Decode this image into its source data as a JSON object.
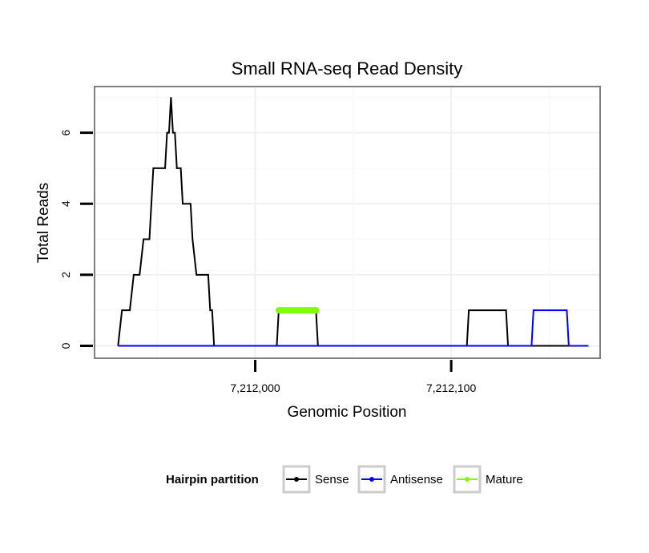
{
  "chart_data": {
    "type": "line",
    "title": "Small RNA-seq Read Density",
    "xlabel": "Genomic Position",
    "ylabel": "Total Reads",
    "xlim": [
      7211918,
      7212176
    ],
    "ylim": [
      -0.35,
      7.3
    ],
    "x_ticks": [
      7212000,
      7212100
    ],
    "x_tick_labels": [
      "7,212,000",
      "7,212,100"
    ],
    "y_ticks": [
      0,
      2,
      4,
      6
    ],
    "y_tick_labels": [
      "0",
      "2",
      "4",
      "6"
    ],
    "grid": true,
    "legend": {
      "title": "Hairpin partition",
      "position": "bottom",
      "entries": [
        {
          "label": "Sense",
          "color": "#000000"
        },
        {
          "label": "Antisense",
          "color": "#0000ff"
        },
        {
          "label": "Mature",
          "color": "#7fff00"
        }
      ]
    },
    "series": [
      {
        "name": "Sense",
        "color": "#000000",
        "points": [
          [
            7211930,
            0
          ],
          [
            7211932,
            1
          ],
          [
            7211936,
            1
          ],
          [
            7211938,
            2
          ],
          [
            7211941,
            2
          ],
          [
            7211943,
            3
          ],
          [
            7211946,
            3
          ],
          [
            7211948,
            5
          ],
          [
            7211954,
            5
          ],
          [
            7211955,
            6
          ],
          [
            7211956,
            6
          ],
          [
            7211957,
            7
          ],
          [
            7211958,
            6
          ],
          [
            7211959,
            6
          ],
          [
            7211960,
            5
          ],
          [
            7211962,
            5
          ],
          [
            7211963,
            4
          ],
          [
            7211967,
            4
          ],
          [
            7211968,
            3
          ],
          [
            7211970,
            2
          ],
          [
            7211976,
            2
          ],
          [
            7211977,
            1
          ],
          [
            7211978,
            1
          ],
          [
            7211979,
            0
          ],
          [
            7212011,
            0
          ],
          [
            7212012,
            1
          ],
          [
            7212031,
            1
          ],
          [
            7212032,
            0
          ],
          [
            7212108,
            0
          ],
          [
            7212109,
            1
          ],
          [
            7212128,
            1
          ],
          [
            7212129,
            0
          ],
          [
            7212170,
            0
          ]
        ]
      },
      {
        "name": "Antisense",
        "color": "#0000ff",
        "points": [
          [
            7211930,
            0
          ],
          [
            7212141,
            0
          ],
          [
            7212142,
            1
          ],
          [
            7212159,
            1
          ],
          [
            7212160,
            0
          ],
          [
            7212170,
            0
          ]
        ]
      },
      {
        "name": "Mature",
        "color": "#7fff00",
        "points": [
          [
            7212012,
            1
          ],
          [
            7212031,
            1
          ]
        ]
      }
    ]
  }
}
